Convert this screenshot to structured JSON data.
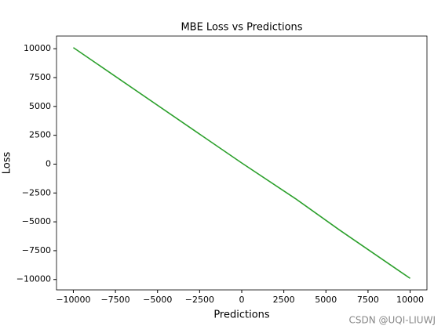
{
  "chart_data": {
    "type": "line",
    "title": "MBE Loss vs Predictions",
    "x_label": "Predictions",
    "y_label": "Loss",
    "watermark": "CSDN @UQI-LIUWJ",
    "x": [
      -10000,
      0,
      3200,
      5800,
      9500,
      10000
    ],
    "series": [
      {
        "name": "MBE Loss",
        "color": "#2ca02c",
        "values": [
          10100,
          100,
          -3000,
          -5700,
          -9400,
          -9900
        ]
      }
    ],
    "xlim": [
      -11000,
      11000
    ],
    "ylim": [
      -10900,
      11100
    ],
    "xticks": [
      {
        "value": -10000,
        "label": "−10000"
      },
      {
        "value": -7500,
        "label": "−7500"
      },
      {
        "value": -5000,
        "label": "−5000"
      },
      {
        "value": -2500,
        "label": "−2500"
      },
      0,
      2500,
      5000,
      7500,
      10000
    ],
    "yticks": [
      {
        "value": -10000,
        "label": "−10000"
      },
      {
        "value": -7500,
        "label": "−7500"
      },
      {
        "value": -5000,
        "label": "−5000"
      },
      {
        "value": -2500,
        "label": "−2500"
      },
      0,
      2500,
      5000,
      7500,
      10000
    ],
    "grid": false
  }
}
